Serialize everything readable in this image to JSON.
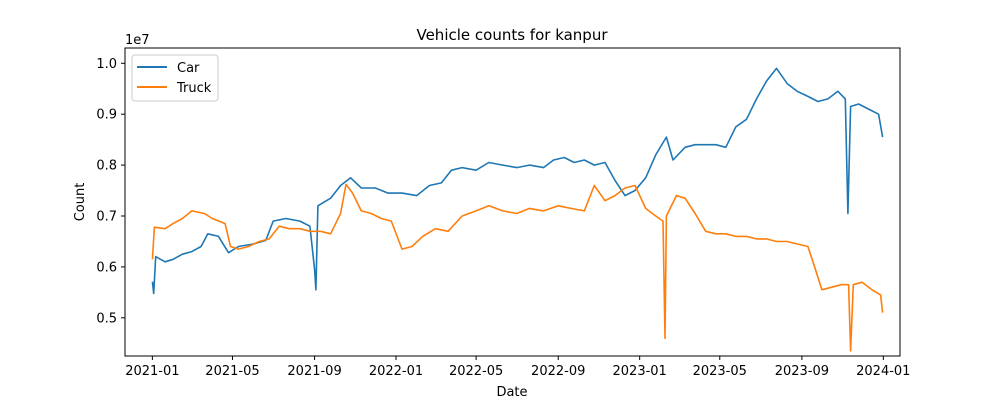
{
  "chart_data": {
    "type": "line",
    "title": "Vehicle counts for kanpur",
    "xlabel": "Date",
    "ylabel": "Count",
    "y_multiplier_label": "1e7",
    "x_range": [
      "2020-11-21",
      "2024-01-26"
    ],
    "ylim": [
      0.425,
      1.03
    ],
    "y_scale_factor": 10000000,
    "x_ticks": [
      "2021-01",
      "2021-05",
      "2021-09",
      "2022-01",
      "2022-05",
      "2022-09",
      "2023-01",
      "2023-05",
      "2023-09",
      "2024-01"
    ],
    "y_ticks": [
      0.5,
      0.6,
      0.7,
      0.8,
      0.9,
      1.0
    ],
    "y_tick_labels": [
      "0.5",
      "0.6",
      "0.7",
      "0.8",
      "0.9",
      "1.0"
    ],
    "grid": false,
    "legend_position": "upper-left",
    "series": [
      {
        "name": "Car",
        "color": "#1f77b4",
        "points": [
          [
            "2021-01-01",
            0.571
          ],
          [
            "2021-01-03",
            0.548
          ],
          [
            "2021-01-06",
            0.62
          ],
          [
            "2021-01-20",
            0.61
          ],
          [
            "2021-02-01",
            0.615
          ],
          [
            "2021-02-15",
            0.625
          ],
          [
            "2021-03-01",
            0.63
          ],
          [
            "2021-03-15",
            0.64
          ],
          [
            "2021-03-25",
            0.665
          ],
          [
            "2021-04-10",
            0.66
          ],
          [
            "2021-04-25",
            0.628
          ],
          [
            "2021-05-10",
            0.64
          ],
          [
            "2021-06-01",
            0.645
          ],
          [
            "2021-06-20",
            0.652
          ],
          [
            "2021-07-01",
            0.69
          ],
          [
            "2021-07-20",
            0.695
          ],
          [
            "2021-08-10",
            0.69
          ],
          [
            "2021-08-25",
            0.68
          ],
          [
            "2021-09-01",
            0.595
          ],
          [
            "2021-09-03",
            0.555
          ],
          [
            "2021-09-06",
            0.72
          ],
          [
            "2021-09-25",
            0.735
          ],
          [
            "2021-10-10",
            0.76
          ],
          [
            "2021-10-25",
            0.775
          ],
          [
            "2021-11-10",
            0.755
          ],
          [
            "2021-12-01",
            0.755
          ],
          [
            "2021-12-20",
            0.745
          ],
          [
            "2022-01-10",
            0.745
          ],
          [
            "2022-02-01",
            0.74
          ],
          [
            "2022-02-20",
            0.76
          ],
          [
            "2022-03-10",
            0.765
          ],
          [
            "2022-03-25",
            0.79
          ],
          [
            "2022-04-10",
            0.795
          ],
          [
            "2022-05-01",
            0.79
          ],
          [
            "2022-05-20",
            0.805
          ],
          [
            "2022-06-10",
            0.8
          ],
          [
            "2022-07-01",
            0.795
          ],
          [
            "2022-07-20",
            0.8
          ],
          [
            "2022-08-10",
            0.795
          ],
          [
            "2022-08-25",
            0.81
          ],
          [
            "2022-09-10",
            0.815
          ],
          [
            "2022-09-25",
            0.805
          ],
          [
            "2022-10-10",
            0.81
          ],
          [
            "2022-10-25",
            0.8
          ],
          [
            "2022-11-10",
            0.805
          ],
          [
            "2022-11-25",
            0.77
          ],
          [
            "2022-12-10",
            0.74
          ],
          [
            "2022-12-25",
            0.75
          ],
          [
            "2023-01-10",
            0.775
          ],
          [
            "2023-01-25",
            0.82
          ],
          [
            "2023-02-10",
            0.855
          ],
          [
            "2023-02-20",
            0.81
          ],
          [
            "2023-03-10",
            0.835
          ],
          [
            "2023-03-25",
            0.84
          ],
          [
            "2023-04-10",
            0.84
          ],
          [
            "2023-04-25",
            0.84
          ],
          [
            "2023-05-10",
            0.835
          ],
          [
            "2023-05-25",
            0.875
          ],
          [
            "2023-06-10",
            0.89
          ],
          [
            "2023-06-25",
            0.93
          ],
          [
            "2023-07-10",
            0.965
          ],
          [
            "2023-07-25",
            0.99
          ],
          [
            "2023-08-10",
            0.96
          ],
          [
            "2023-08-25",
            0.945
          ],
          [
            "2023-09-10",
            0.935
          ],
          [
            "2023-09-25",
            0.925
          ],
          [
            "2023-10-10",
            0.93
          ],
          [
            "2023-10-25",
            0.945
          ],
          [
            "2023-11-05",
            0.93
          ],
          [
            "2023-11-09",
            0.705
          ],
          [
            "2023-11-13",
            0.915
          ],
          [
            "2023-11-25",
            0.92
          ],
          [
            "2023-12-10",
            0.91
          ],
          [
            "2023-12-25",
            0.9
          ],
          [
            "2023-12-31",
            0.855
          ]
        ]
      },
      {
        "name": "Truck",
        "color": "#ff7f0e",
        "points": [
          [
            "2021-01-01",
            0.615
          ],
          [
            "2021-01-04",
            0.678
          ],
          [
            "2021-01-20",
            0.675
          ],
          [
            "2021-02-01",
            0.685
          ],
          [
            "2021-02-15",
            0.695
          ],
          [
            "2021-03-01",
            0.71
          ],
          [
            "2021-03-20",
            0.705
          ],
          [
            "2021-04-01",
            0.695
          ],
          [
            "2021-04-20",
            0.685
          ],
          [
            "2021-04-28",
            0.64
          ],
          [
            "2021-05-10",
            0.635
          ],
          [
            "2021-05-25",
            0.64
          ],
          [
            "2021-06-10",
            0.65
          ],
          [
            "2021-06-25",
            0.655
          ],
          [
            "2021-07-10",
            0.68
          ],
          [
            "2021-07-25",
            0.675
          ],
          [
            "2021-08-10",
            0.675
          ],
          [
            "2021-08-25",
            0.67
          ],
          [
            "2021-09-10",
            0.67
          ],
          [
            "2021-09-25",
            0.665
          ],
          [
            "2021-10-10",
            0.705
          ],
          [
            "2021-10-18",
            0.762
          ],
          [
            "2021-10-28",
            0.745
          ],
          [
            "2021-11-10",
            0.71
          ],
          [
            "2021-11-25",
            0.705
          ],
          [
            "2021-12-10",
            0.695
          ],
          [
            "2021-12-25",
            0.69
          ],
          [
            "2022-01-10",
            0.635
          ],
          [
            "2022-01-25",
            0.64
          ],
          [
            "2022-02-10",
            0.66
          ],
          [
            "2022-03-01",
            0.675
          ],
          [
            "2022-03-20",
            0.67
          ],
          [
            "2022-04-10",
            0.7
          ],
          [
            "2022-05-01",
            0.71
          ],
          [
            "2022-05-20",
            0.72
          ],
          [
            "2022-06-10",
            0.71
          ],
          [
            "2022-07-01",
            0.705
          ],
          [
            "2022-07-20",
            0.715
          ],
          [
            "2022-08-10",
            0.71
          ],
          [
            "2022-09-01",
            0.72
          ],
          [
            "2022-09-20",
            0.715
          ],
          [
            "2022-10-10",
            0.71
          ],
          [
            "2022-10-25",
            0.76
          ],
          [
            "2022-11-10",
            0.73
          ],
          [
            "2022-11-25",
            0.74
          ],
          [
            "2022-12-10",
            0.755
          ],
          [
            "2022-12-25",
            0.76
          ],
          [
            "2023-01-10",
            0.715
          ],
          [
            "2023-01-25",
            0.7
          ],
          [
            "2023-02-05",
            0.69
          ],
          [
            "2023-02-08",
            0.46
          ],
          [
            "2023-02-10",
            0.7
          ],
          [
            "2023-02-25",
            0.74
          ],
          [
            "2023-03-10",
            0.735
          ],
          [
            "2023-03-25",
            0.705
          ],
          [
            "2023-04-10",
            0.67
          ],
          [
            "2023-04-25",
            0.665
          ],
          [
            "2023-05-10",
            0.665
          ],
          [
            "2023-05-25",
            0.66
          ],
          [
            "2023-06-10",
            0.66
          ],
          [
            "2023-06-25",
            0.655
          ],
          [
            "2023-07-10",
            0.655
          ],
          [
            "2023-07-25",
            0.65
          ],
          [
            "2023-08-10",
            0.65
          ],
          [
            "2023-08-25",
            0.645
          ],
          [
            "2023-09-10",
            0.64
          ],
          [
            "2023-09-20",
            0.6
          ],
          [
            "2023-10-01",
            0.555
          ],
          [
            "2023-10-15",
            0.56
          ],
          [
            "2023-10-30",
            0.565
          ],
          [
            "2023-11-10",
            0.565
          ],
          [
            "2023-11-13",
            0.435
          ],
          [
            "2023-11-17",
            0.565
          ],
          [
            "2023-11-30",
            0.57
          ],
          [
            "2023-12-15",
            0.555
          ],
          [
            "2023-12-28",
            0.545
          ],
          [
            "2023-12-31",
            0.51
          ]
        ]
      }
    ]
  }
}
